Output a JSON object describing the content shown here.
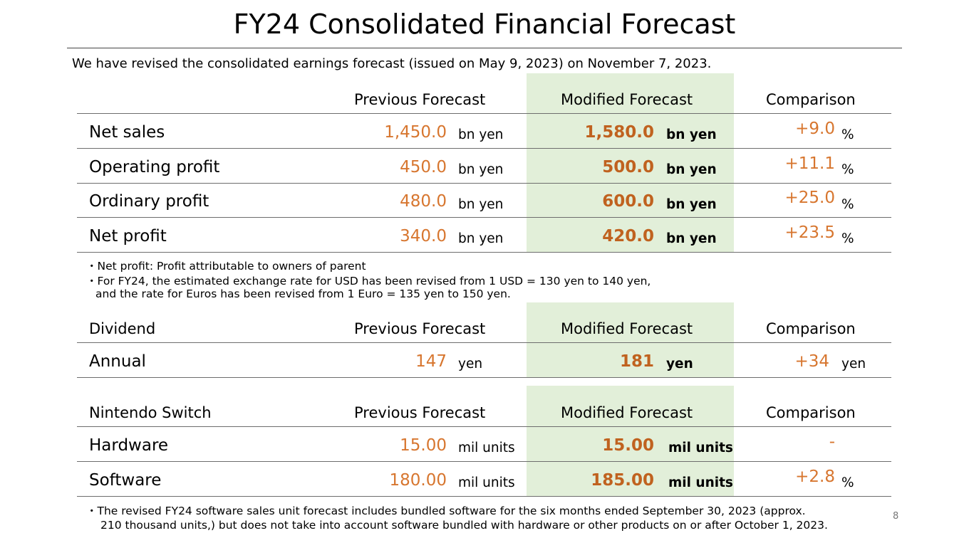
{
  "title": "FY24 Consolidated Financial Forecast",
  "intro": "We have revised the consolidated earnings forecast (issued on May 9, 2023) on November 7, 2023.",
  "financials": {
    "headers": {
      "previous": "Previous Forecast",
      "modified": "Modified Forecast",
      "comparison": "Comparison"
    },
    "rows": [
      {
        "label": "Net sales",
        "previous": "1,450.0",
        "previous_unit": "bn yen",
        "modified": "1,580.0",
        "modified_unit": "bn yen",
        "comparison": "+9.0",
        "comparison_unit": "%"
      },
      {
        "label": "Operating profit",
        "previous": "450.0",
        "previous_unit": "bn yen",
        "modified": "500.0",
        "modified_unit": "bn yen",
        "comparison": "+11.1",
        "comparison_unit": "%"
      },
      {
        "label": "Ordinary profit",
        "previous": "480.0",
        "previous_unit": "bn yen",
        "modified": "600.0",
        "modified_unit": "bn yen",
        "comparison": "+25.0",
        "comparison_unit": "%"
      },
      {
        "label": "Net profit",
        "previous": "340.0",
        "previous_unit": "bn yen",
        "modified": "420.0",
        "modified_unit": "bn yen",
        "comparison": "+23.5",
        "comparison_unit": "%"
      }
    ],
    "notes": [
      "・Net profit: Profit attributable to owners of parent",
      "・For FY24, the estimated exchange rate for USD has been revised from 1 USD = 130 yen to 140 yen,",
      "and the rate for Euros has been revised from 1 Euro = 135 yen to 150 yen."
    ]
  },
  "dividend": {
    "headers": {
      "label": "Dividend",
      "previous": "Previous Forecast",
      "modified": "Modified Forecast",
      "comparison": "Comparison"
    },
    "rows": [
      {
        "label": "Annual",
        "previous": "147",
        "previous_unit": "yen",
        "modified": "181",
        "modified_unit": "yen",
        "comparison": "+34",
        "comparison_unit": "yen"
      }
    ]
  },
  "switch": {
    "headers": {
      "label": "Nintendo Switch",
      "previous": "Previous Forecast",
      "modified": "Modified Forecast",
      "comparison": "Comparison"
    },
    "rows": [
      {
        "label": "Hardware",
        "previous": "15.00",
        "previous_unit": "mil units",
        "modified": "15.00",
        "modified_unit": "mil units",
        "comparison": "-",
        "comparison_unit": ""
      },
      {
        "label": "Software",
        "previous": "180.00",
        "previous_unit": "mil units",
        "modified": "185.00",
        "modified_unit": "mil units",
        "comparison": "+2.8",
        "comparison_unit": "%"
      }
    ],
    "notes": [
      "・The revised FY24 software sales unit forecast includes bundled software for the six months ended September 30, 2023 (approx.",
      "210 thousand units,) but does not take into account software bundled with hardware or other products on or after October 1, 2023."
    ]
  },
  "page_number": "8",
  "colors": {
    "highlight": "#e2efd9",
    "previous_value": "#d7762f",
    "modified_value": "#c0621f",
    "rule": "#6d6d6d"
  }
}
